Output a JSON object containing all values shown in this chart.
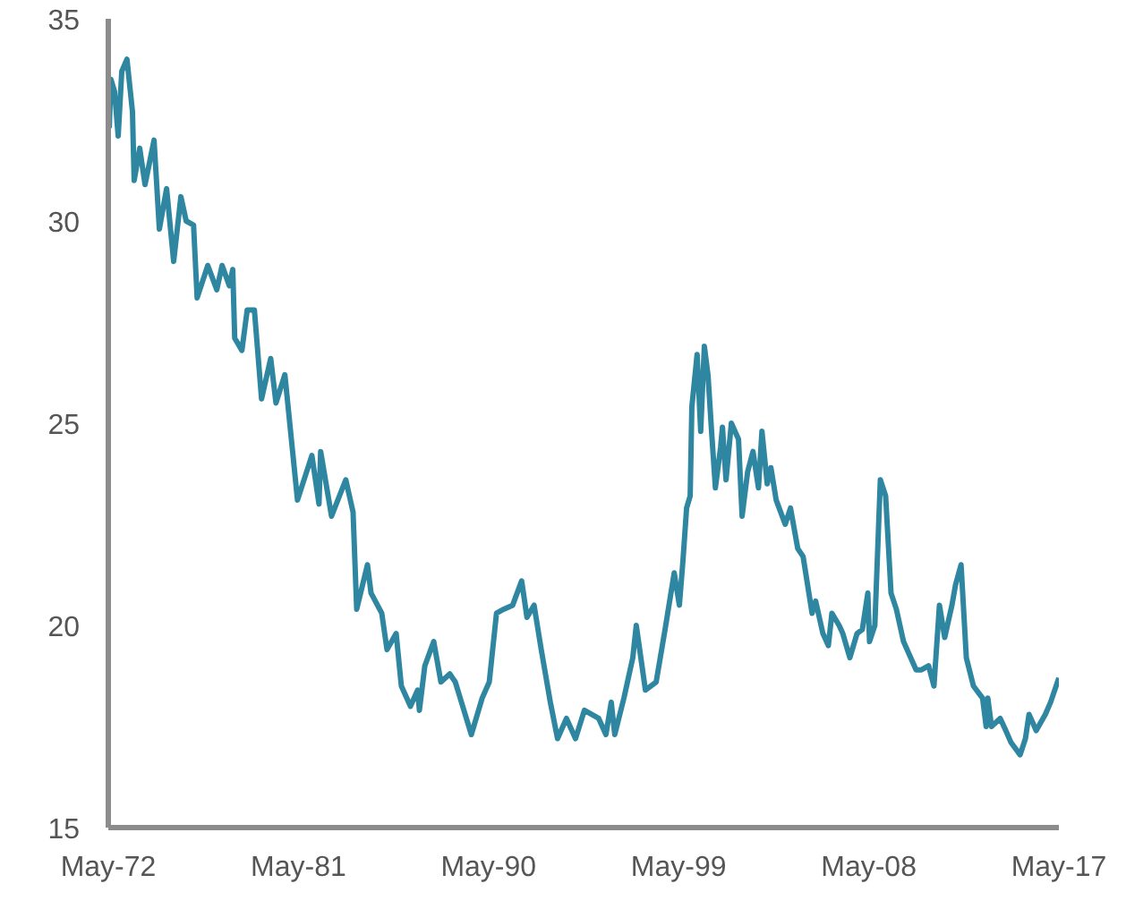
{
  "chart_data": {
    "type": "line",
    "x": [
      "1972-05-17",
      "1972-06-16",
      "1972-08-17",
      "1972-10-19",
      "1972-12-20",
      "1973-03-20",
      "1973-06-23",
      "1973-07-22",
      "1973-10-26",
      "1974-01-26",
      "1974-07-01",
      "1974-10-01",
      "1975-02-03",
      "1975-06-05",
      "1975-10-08",
      "1976-01-08",
      "1976-05-14",
      "1976-07-15",
      "1977-01-15",
      "1977-06-20",
      "1977-09-20",
      "1978-01-22",
      "1978-03-23",
      "1978-04-26",
      "1978-08-28",
      "1978-11-28",
      "1979-04-01",
      "1979-08-03",
      "1980-01-08",
      "1980-04-08",
      "1980-09-09",
      "1981-04-15",
      "1981-12-20",
      "1982-04-22",
      "1982-05-21",
      "1982-11-25",
      "1983-07-29",
      "1983-12-02",
      "1984-02-03",
      "1984-08-07",
      "1984-10-08",
      "1985-04-11",
      "1985-07-11",
      "1985-12-16",
      "1986-03-16",
      "1986-08-21",
      "1986-12-23",
      "1987-01-22",
      "1987-04-26",
      "1987-09-27",
      "1988-01-29",
      "1988-07-01",
      "1988-10-04",
      "1989-07-08",
      "1990-01-11",
      "1990-05-14",
      "1990-09-16",
      "1991-01-19",
      "1991-06-23",
      "1991-11-25",
      "1992-02-25",
      "1992-06-27",
      "1992-10-29",
      "1993-04-04",
      "1993-08-07",
      "1994-01-08",
      "1994-06-13",
      "1994-11-14",
      "1995-07-19",
      "1995-11-21",
      "1996-02-21",
      "1996-04-22",
      "1996-09-27",
      "1997-02-28",
      "1997-04-29",
      "1997-10-04",
      "1998-04-08",
      "1998-09-09",
      "1999-02-14",
      "1999-05-14",
      "1999-07-15",
      "1999-09-16",
      "1999-11-17",
      "1999-12-16",
      "2000-03-16",
      "2000-05-17",
      "2000-07-19",
      "2000-09-20",
      "2000-11-21",
      "2001-01-26",
      "2001-04-26",
      "2001-05-28",
      "2001-07-29",
      "2001-10-29",
      "2002-03-02",
      "2002-05-03",
      "2002-08-07",
      "2002-11-07",
      "2003-02-10",
      "2003-04-11",
      "2003-07-11",
      "2003-09-13",
      "2003-12-13",
      "2004-05-17",
      "2004-08-17",
      "2004-12-20",
      "2005-03-23",
      "2005-08-25",
      "2005-10-26",
      "2006-02-28",
      "2006-06-02",
      "2006-08-03",
      "2006-12-05",
      "2007-02-07",
      "2007-06-09",
      "2007-10-11",
      "2008-01-11",
      "2008-04-15",
      "2008-05-14",
      "2008-08-14",
      "2008-11-17",
      "2009-02-17",
      "2009-05-21",
      "2009-08-21",
      "2009-12-23",
      "2010-07-29",
      "2010-10-29",
      "2011-03-02",
      "2011-06-02",
      "2011-09-05",
      "2011-12-05",
      "2012-04-08",
      "2012-06-09",
      "2012-09-13",
      "2012-12-13",
      "2013-04-15",
      "2013-09-20",
      "2013-11-21",
      "2013-12-20",
      "2014-02-21",
      "2014-07-22",
      "2014-10-26",
      "2015-01-26",
      "2015-07-01",
      "2015-10-01",
      "2015-12-02",
      "2016-04-04",
      "2016-09-09",
      "2016-12-09",
      "2017-05"
    ],
    "series": [
      {
        "color": "#2e86a0",
        "values": [
          32.3,
          33.5,
          33.2,
          32.1,
          33.7,
          34.0,
          32.7,
          31.0,
          31.8,
          30.9,
          32.0,
          29.8,
          30.8,
          29.0,
          30.6,
          30.0,
          29.9,
          28.1,
          28.9,
          28.3,
          28.9,
          28.4,
          28.8,
          27.1,
          26.8,
          27.8,
          27.8,
          25.6,
          26.6,
          25.5,
          26.2,
          23.1,
          24.2,
          23.0,
          24.3,
          22.7,
          23.6,
          22.8,
          20.4,
          21.5,
          20.8,
          20.3,
          19.4,
          19.8,
          18.5,
          18.0,
          18.4,
          17.9,
          19.0,
          19.6,
          18.6,
          18.8,
          18.6,
          17.3,
          18.2,
          18.6,
          20.3,
          20.4,
          20.5,
          21.1,
          20.2,
          20.5,
          19.4,
          18.1,
          17.2,
          17.7,
          17.2,
          17.9,
          17.7,
          17.3,
          18.1,
          17.3,
          18.2,
          19.2,
          20.0,
          18.4,
          18.6,
          19.9,
          21.3,
          20.5,
          21.6,
          22.9,
          23.2,
          25.4,
          26.7,
          24.8,
          26.9,
          26.2,
          24.8,
          23.4,
          24.4,
          24.9,
          23.6,
          25.0,
          24.6,
          22.7,
          23.8,
          24.3,
          23.4,
          24.8,
          23.5,
          23.9,
          23.1,
          22.5,
          22.9,
          21.9,
          21.7,
          20.3,
          20.6,
          19.8,
          19.5,
          20.3,
          20.0,
          19.8,
          19.2,
          19.8,
          19.9,
          20.8,
          19.6,
          20.0,
          23.6,
          23.2,
          20.8,
          20.4,
          19.6,
          18.9,
          18.9,
          19.0,
          18.5,
          20.5,
          19.7,
          20.5,
          21.0,
          21.5,
          19.2,
          18.5,
          18.2,
          17.5,
          18.2,
          17.5,
          17.7,
          17.4,
          17.1,
          16.8,
          17.2,
          17.8,
          17.4,
          17.8,
          18.1,
          18.7
        ]
      }
    ],
    "xlim": [
      "1972-05",
      "2017-05"
    ],
    "xticks": [
      {
        "value": "1972-05",
        "label": "May-72"
      },
      {
        "value": "1981-05",
        "label": "May-81"
      },
      {
        "value": "1990-05",
        "label": "May-90"
      },
      {
        "value": "1999-05",
        "label": "May-99"
      },
      {
        "value": "2008-05",
        "label": "May-08"
      },
      {
        "value": "2017-05",
        "label": "May-17"
      }
    ],
    "ylim": [
      15,
      35
    ],
    "yticks": [
      15,
      20,
      25,
      30,
      35
    ],
    "grid": false
  }
}
